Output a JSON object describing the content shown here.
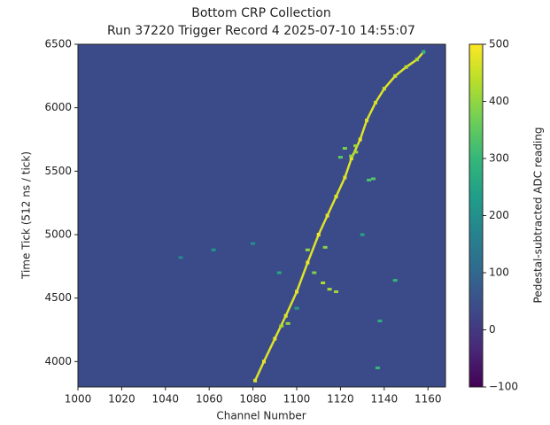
{
  "chart_data": {
    "type": "heatmap",
    "title": "Bottom CRP Collection",
    "subtitle": "Run 37220 Trigger Record 4 2025-07-10 14:55:07",
    "x_label": "Channel Number",
    "y_label": "Time Tick (512 ns / tick)",
    "colorbar_label": "Pedestal-subtracted ADC reading",
    "colormap": "viridis",
    "xlim": [
      1000,
      1168
    ],
    "ylim": [
      3800,
      6500
    ],
    "clim": [
      -100,
      500
    ],
    "xticks": [
      1000,
      1020,
      1040,
      1060,
      1080,
      1100,
      1120,
      1140,
      1160
    ],
    "yticks": [
      4000,
      4500,
      5000,
      5500,
      6000,
      6500
    ],
    "cticks": [
      {
        "value": -100,
        "label": "−100"
      },
      0,
      100,
      200,
      300,
      400,
      500
    ],
    "track": {
      "x": [
        1081,
        1085,
        1090,
        1095,
        1100,
        1105,
        1110,
        1114,
        1118,
        1122,
        1125,
        1129,
        1132,
        1136,
        1140,
        1145,
        1150,
        1155,
        1158
      ],
      "y": [
        3850,
        4000,
        4180,
        4360,
        4550,
        4780,
        5000,
        5150,
        5300,
        5450,
        5600,
        5750,
        5900,
        6040,
        6150,
        6250,
        6320,
        6380,
        6440
      ],
      "values": [
        470,
        480,
        480,
        470,
        480,
        490,
        490,
        480,
        480,
        470,
        480,
        480,
        470,
        460,
        460,
        450,
        440,
        420,
        300
      ]
    },
    "hits": {
      "x": [
        1127,
        1125,
        1122,
        1120,
        1133,
        1135,
        1112,
        1115,
        1118,
        1108,
        1105,
        1113,
        1093,
        1096,
        1145,
        1138,
        1137,
        1130,
        1080,
        1062,
        1047,
        1092,
        1100,
        1127
      ],
      "y": [
        5700,
        5620,
        5680,
        5610,
        5430,
        5440,
        4620,
        4570,
        4550,
        4700,
        4880,
        4900,
        4280,
        4300,
        4640,
        4320,
        3950,
        5000,
        4930,
        4880,
        4820,
        4700,
        4420,
        5650
      ],
      "values": [
        420,
        400,
        380,
        350,
        330,
        340,
        430,
        420,
        410,
        380,
        400,
        390,
        420,
        400,
        300,
        280,
        300,
        250,
        200,
        220,
        180,
        260,
        240,
        410
      ]
    }
  }
}
